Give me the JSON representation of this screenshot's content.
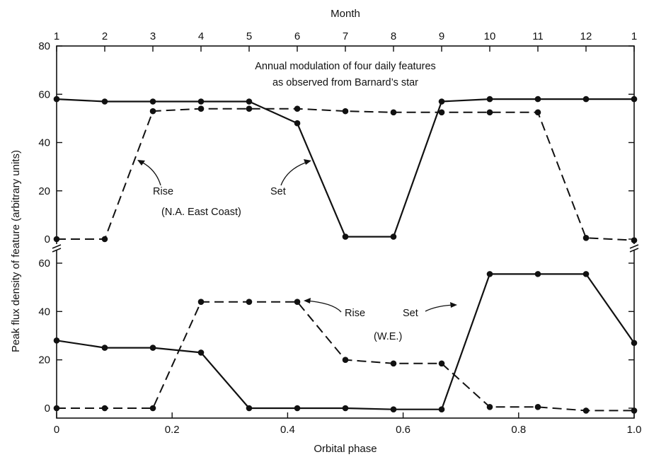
{
  "chart_data": {
    "type": "line",
    "xlabel": "Orbital phase",
    "ylabel": "Peak flux density of feature (arbitrary units)",
    "top_axis_title": "Month",
    "top_tick_labels": [
      "1",
      "2",
      "3",
      "4",
      "5",
      "6",
      "7",
      "8",
      "9",
      "10",
      "11",
      "12",
      "1"
    ],
    "x_ticks": [
      0,
      0.2,
      0.4,
      0.6,
      0.8,
      1.0
    ],
    "x_tick_labels": [
      "0",
      "0.2",
      "0.4",
      "0.6",
      "0.8",
      "1.0"
    ],
    "xlim": [
      0,
      1.0
    ],
    "panels": [
      {
        "id": "upper",
        "ylim": [
          0,
          80
        ],
        "y_ticks": [
          0,
          20,
          40,
          60,
          80
        ],
        "y_tick_labels": [
          "0",
          "20",
          "40",
          "60",
          "80"
        ],
        "title_line1": "Annual modulation of four daily features",
        "title_line2": "as observed from Barnard’s star",
        "region_label": "(N.A. East Coast)",
        "series": [
          {
            "name": "Set",
            "style": "solid",
            "x": [
              0,
              0.0833,
              0.1667,
              0.25,
              0.3333,
              0.4167,
              0.5,
              0.5833,
              0.6667,
              0.75,
              0.8333,
              0.9167,
              1.0
            ],
            "y": [
              58,
              57,
              57,
              57,
              57,
              48,
              1,
              1,
              57,
              58,
              58,
              58,
              58
            ]
          },
          {
            "name": "Rise",
            "style": "dashed",
            "x": [
              0,
              0.0833,
              0.1667,
              0.25,
              0.3333,
              0.4167,
              0.5,
              0.5833,
              0.6667,
              0.75,
              0.8333,
              0.9167,
              1.0
            ],
            "y": [
              0,
              0,
              53,
              54,
              54,
              54,
              53,
              52.5,
              52.5,
              52.5,
              52.5,
              0.5,
              -0.5
            ]
          }
        ],
        "annotations": [
          {
            "text": "Rise",
            "series": "Rise"
          },
          {
            "text": "Set",
            "series": "Set"
          }
        ]
      },
      {
        "id": "lower",
        "ylim": [
          0,
          60
        ],
        "y_ticks": [
          0,
          20,
          40,
          60
        ],
        "y_tick_labels": [
          "0",
          "20",
          "40",
          "60"
        ],
        "region_label": "(W.E.)",
        "series": [
          {
            "name": "Set",
            "style": "solid",
            "x": [
              0,
              0.0833,
              0.1667,
              0.25,
              0.3333,
              0.4167,
              0.5,
              0.5833,
              0.6667,
              0.75,
              0.8333,
              0.9167,
              1.0
            ],
            "y": [
              28,
              25,
              25,
              23,
              0,
              0,
              0,
              -0.5,
              -0.5,
              55.5,
              55.5,
              55.5,
              27
            ]
          },
          {
            "name": "Rise",
            "style": "dashed",
            "x": [
              0,
              0.0833,
              0.1667,
              0.25,
              0.3333,
              0.4167,
              0.5,
              0.5833,
              0.6667,
              0.75,
              0.8333,
              0.9167,
              1.0
            ],
            "y": [
              0,
              0,
              0,
              44,
              44,
              44,
              20,
              18.5,
              18.5,
              0.5,
              0.5,
              -1,
              -1
            ]
          }
        ],
        "annotations": [
          {
            "text": "Rise",
            "series": "Rise"
          },
          {
            "text": "Set",
            "series": "Set"
          }
        ]
      }
    ]
  }
}
